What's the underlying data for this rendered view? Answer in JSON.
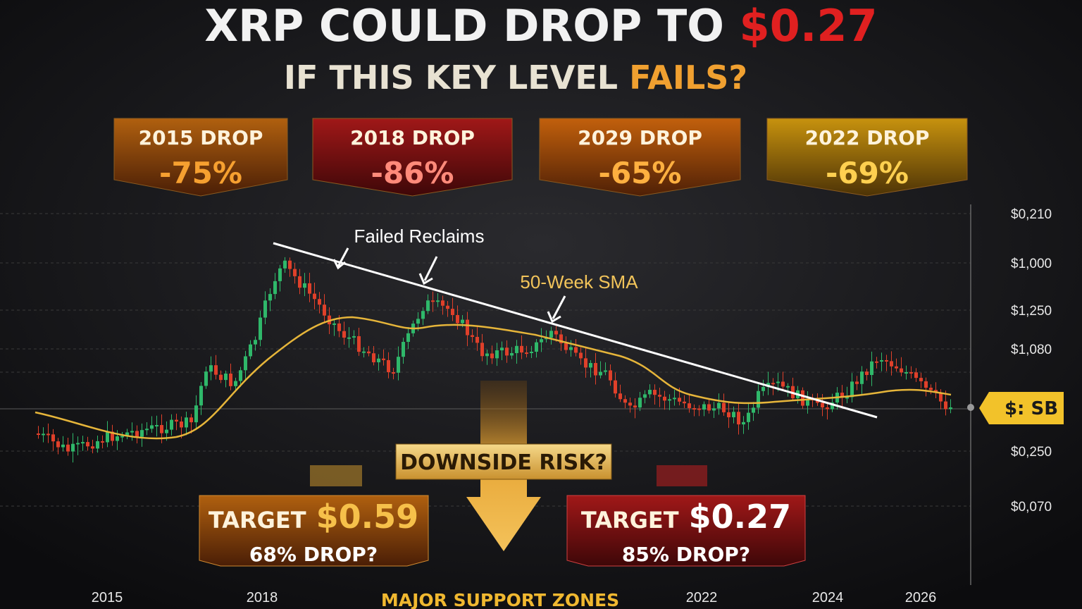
{
  "title": {
    "line1_lead": "XRP COULD DROP TO",
    "line1_emphasis": "$0.27",
    "line2_lead": "IF THIS KEY LEVEL",
    "line2_emphasis": "FAILS?"
  },
  "drop_cards": [
    {
      "label": "2015 DROP",
      "value": "-75%"
    },
    {
      "label": "2018 DROP",
      "value": "-86%"
    },
    {
      "label": "2029 DROP",
      "value": "-65%"
    },
    {
      "label": "2022 DROP",
      "value": "-69%"
    }
  ],
  "annotations": {
    "failed_reclaims": "Failed Reclaims",
    "sma": "50-Week SMA",
    "downside": "DOWNSIDE RISK?",
    "support": "MAJOR SUPPORT ZONES"
  },
  "targets": [
    {
      "label": "TARGET",
      "price": "$0.59",
      "note": "68% DROP?"
    },
    {
      "label": "TARGET",
      "price": "$0.27",
      "note": "85% DROP?"
    }
  ],
  "y_axis_labels": [
    "$0,210",
    "$1,000",
    "$1,250",
    "$1,080",
    "$0,250",
    "$0,070"
  ],
  "price_tag": "$: SB",
  "x_axis_labels": [
    "2015",
    "2018",
    "2022",
    "2024",
    "2026"
  ]
}
